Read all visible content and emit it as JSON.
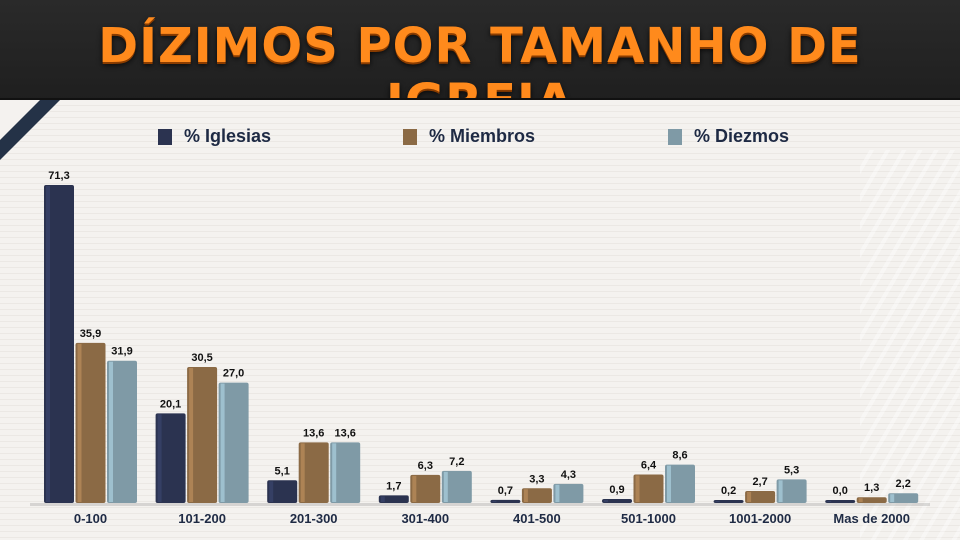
{
  "chart_data": {
    "type": "bar",
    "title": "DÍZIMOS POR TAMANHO DE IGREJA",
    "categories": [
      "0-100",
      "101-200",
      "201-300",
      "301-400",
      "401-500",
      "501-1000",
      "1001-2000",
      "Mas de 2000"
    ],
    "series": [
      {
        "name": "% Iglesias",
        "color": "#2b3350",
        "values": [
          71.3,
          20.1,
          5.1,
          1.7,
          0.7,
          0.9,
          0.2,
          0.0
        ],
        "labels": [
          "71,3",
          "20,1",
          "5,1",
          "1,7",
          "0,7",
          "0,9",
          "0,2",
          "0,0"
        ]
      },
      {
        "name": "% Miembros",
        "color": "#8b6a45",
        "values": [
          35.9,
          30.5,
          13.6,
          6.3,
          3.3,
          6.4,
          2.7,
          1.3
        ],
        "labels": [
          "35,9",
          "30,5",
          "13,6",
          "6,3",
          "3,3",
          "6,4",
          "2,7",
          "1,3"
        ]
      },
      {
        "name": "% Diezmos",
        "color": "#7f9aa6",
        "values": [
          31.9,
          27.0,
          13.6,
          7.2,
          4.3,
          8.6,
          5.3,
          2.2
        ],
        "labels": [
          "31,9",
          "27,0",
          "13,6",
          "7,2",
          "4,3",
          "8,6",
          "5,3",
          "2,2"
        ]
      }
    ],
    "ylim": [
      0,
      71.3
    ],
    "grid": false,
    "legend": "top"
  }
}
